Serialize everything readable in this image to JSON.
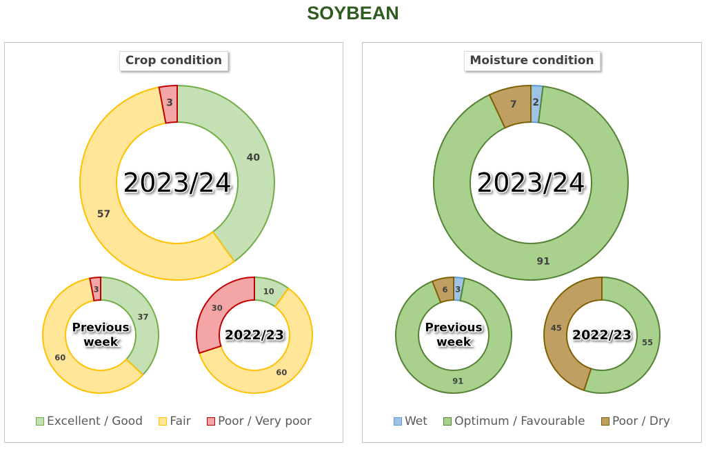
{
  "title": "SOYBEAN",
  "colors": {
    "excellent_good": {
      "fill": "#c5e0b4",
      "stroke": "#70ad47"
    },
    "fair": {
      "fill": "#ffe699",
      "stroke": "#ffc000"
    },
    "poor_very_poor": {
      "fill": "#f4a6a6",
      "stroke": "#c00000"
    },
    "wet": {
      "fill": "#9dc3e6",
      "stroke": "#5b9bd5"
    },
    "optimum": {
      "fill": "#a9d18e",
      "stroke": "#548235"
    },
    "poor_dry": {
      "fill": "#bf9f62",
      "stroke": "#7f6000"
    }
  },
  "chart_data": [
    {
      "type": "pie",
      "title": "Crop condition",
      "legend_position": "bottom",
      "categories": [
        "Excellent / Good",
        "Fair",
        "Poor / Very poor"
      ],
      "donuts": [
        {
          "label": "2023/24",
          "values": [
            40,
            57,
            3
          ]
        },
        {
          "label": "Previous week",
          "values": [
            37,
            60,
            3
          ]
        },
        {
          "label": "2022/23",
          "values": [
            10,
            60,
            30
          ]
        }
      ]
    },
    {
      "type": "pie",
      "title": "Moisture condition",
      "legend_position": "bottom",
      "categories": [
        "Wet",
        "Optimum / Favourable",
        "Poor / Dry"
      ],
      "donuts": [
        {
          "label": "2023/24",
          "values": [
            2,
            91,
            7
          ]
        },
        {
          "label": "Previous week",
          "values": [
            3,
            91,
            6
          ]
        },
        {
          "label": "2022/23",
          "values": [
            0,
            55,
            45
          ]
        }
      ]
    }
  ]
}
